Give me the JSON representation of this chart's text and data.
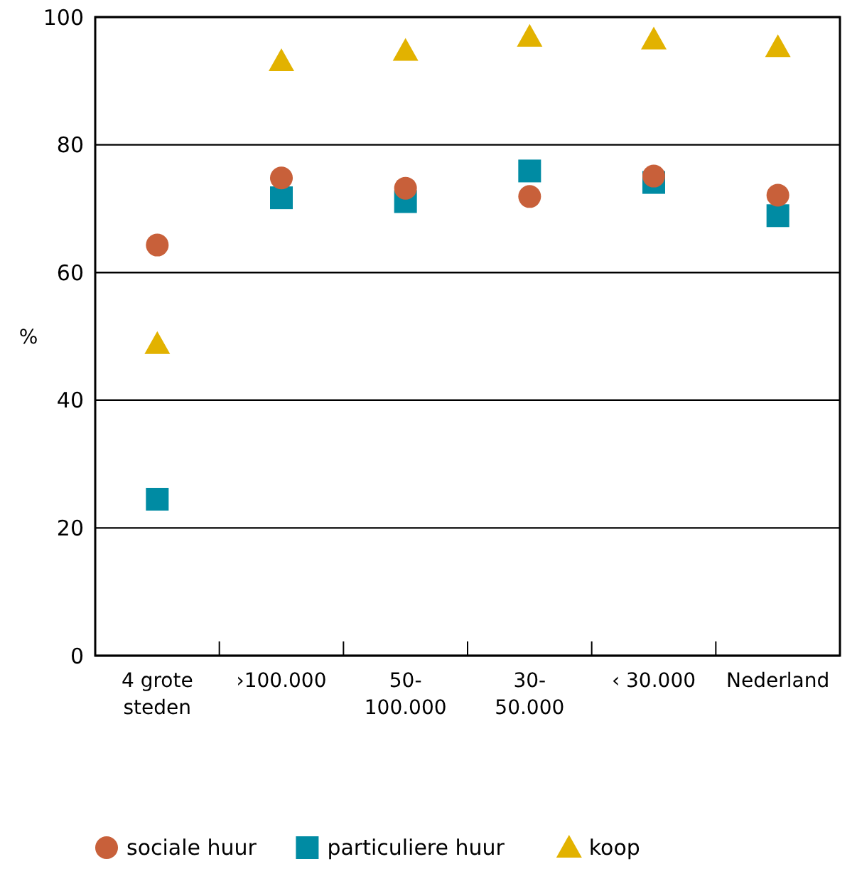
{
  "chart_data": {
    "type": "scatter",
    "ylabel": "%",
    "categories": [
      "4 grote steden",
      "›100.000",
      "50-100.000",
      "30-50.000",
      "‹ 30.000",
      "Nederland"
    ],
    "ylim": [
      0,
      100
    ],
    "yticks": [
      0,
      20,
      40,
      60,
      80,
      100
    ],
    "grid": "y",
    "legend": "bottom",
    "series": [
      {
        "name": "sociale huur",
        "color": "#c8603a",
        "marker": "circle",
        "values": [
          64.3,
          74.8,
          73.2,
          71.9,
          75.1,
          72.1
        ]
      },
      {
        "name": "particuliere huur",
        "color": "#008ba3",
        "marker": "square",
        "values": [
          24.5,
          71.7,
          71.1,
          75.9,
          74.1,
          68.9
        ]
      },
      {
        "name": "koop",
        "color": "#e2b200",
        "marker": "triangle",
        "values": [
          48.8,
          93.1,
          94.7,
          96.9,
          96.5,
          95.3
        ]
      }
    ]
  }
}
